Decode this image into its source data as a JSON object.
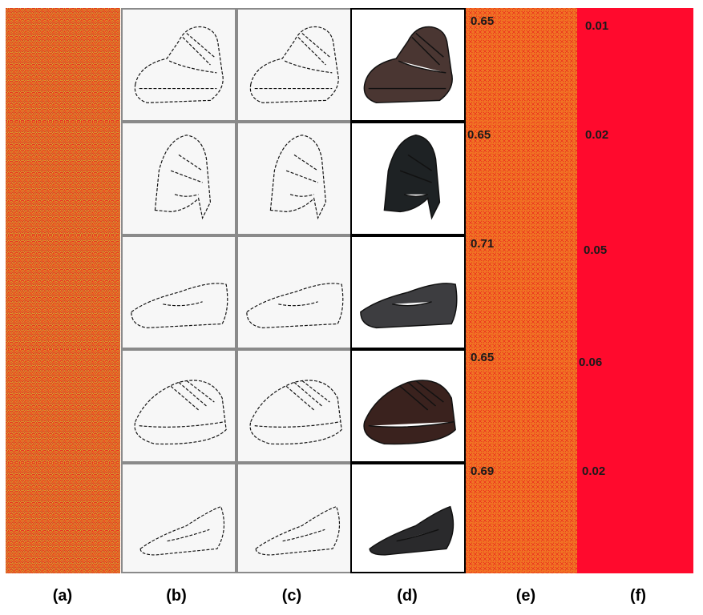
{
  "column_labels": [
    "(a)",
    "(b)",
    "(c)",
    "(d)",
    "(e)",
    "(f)"
  ],
  "scores_e": [
    "0.65",
    "0.65",
    "0.71",
    "0.65",
    "0.69"
  ],
  "scores_f": [
    "0.01",
    "0.02",
    "0.05",
    "0.06",
    "0.02"
  ],
  "rows": [
    {
      "shoe": "oxford-shoe",
      "color": "#4a3632"
    },
    {
      "shoe": "high-heel-shoe",
      "color": "#1e2224"
    },
    {
      "shoe": "flat-loafer",
      "color": "#3d3d40"
    },
    {
      "shoe": "lace-up-shoe",
      "color": "#3a221e"
    },
    {
      "shoe": "flat-shoe",
      "color": "#2a2a2c"
    }
  ],
  "colors": {
    "noise_red": "#e5452a",
    "noise_yellow": "#f0a020",
    "noise_green": "#9bd24a",
    "solid_red": "#ff0a2d"
  }
}
